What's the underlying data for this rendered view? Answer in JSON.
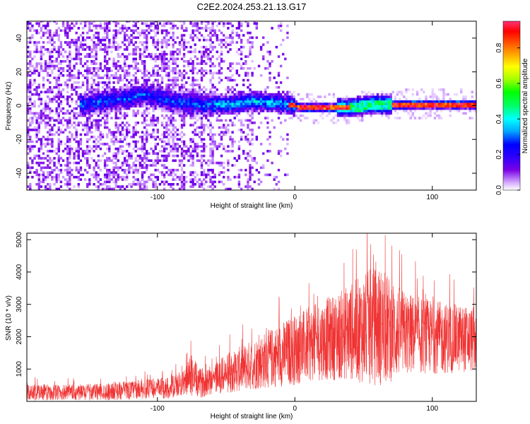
{
  "title": "C2E2.2024.253.21.13.G17",
  "chart_data": [
    {
      "type": "heatmap",
      "xlabel": "Height of straight line (km)",
      "ylabel": "Frequency (Hz)",
      "xlim": [
        -195,
        132
      ],
      "ylim": [
        -50,
        50
      ],
      "xticks": [
        -100,
        0,
        100
      ],
      "yticks": [
        -40,
        -20,
        0,
        20,
        40
      ],
      "colorbar": {
        "label": "Normalized spectral amplitude",
        "range": [
          0,
          0.95
        ],
        "ticks": [
          0,
          0.2,
          0.4,
          0.6,
          0.8
        ],
        "colors": [
          "#ffffff",
          "#cc99ff",
          "#7a00e6",
          "#3300ff",
          "#0000ff",
          "#00aaff",
          "#00ffff",
          "#00ff66",
          "#00ff00",
          "#aaff00",
          "#ffff00",
          "#ffaa00",
          "#ff5500",
          "#ff0000",
          "#ff3377"
        ]
      },
      "center_line": {
        "x": [
          -155,
          -130,
          -110,
          -90,
          -70,
          -50,
          -30,
          -15,
          -5,
          5,
          20,
          40,
          55,
          70,
          90,
          110,
          132
        ],
        "y": [
          0,
          3,
          6,
          2,
          0,
          0,
          2,
          1,
          0,
          -2,
          -2,
          -2,
          0,
          0,
          0,
          0,
          0
        ]
      }
    },
    {
      "type": "line",
      "series_color": "#f03333",
      "xlabel": "Height of straight line (km)",
      "ylabel": "SNR (10 * v/v)",
      "xlim": [
        -195,
        132
      ],
      "ylim": [
        0,
        5200
      ],
      "xticks": [
        -100,
        0,
        100
      ],
      "yticks": [
        1000,
        2000,
        3000,
        4000,
        5000
      ],
      "envelope_x": [
        -195,
        -160,
        -130,
        -110,
        -90,
        -80,
        -75,
        -70,
        -60,
        -50,
        -40,
        -30,
        -20,
        -10,
        0,
        10,
        20,
        30,
        40,
        50,
        55,
        60,
        65,
        70,
        80,
        90,
        100,
        110,
        120,
        132
      ],
      "envelope_mean": [
        280,
        270,
        320,
        380,
        420,
        600,
        850,
        550,
        700,
        850,
        1000,
        1150,
        1300,
        1450,
        1600,
        1750,
        1900,
        2000,
        2150,
        2250,
        2300,
        2350,
        2250,
        2200,
        2100,
        2050,
        2000,
        1950,
        1950,
        1900
      ],
      "envelope_amp": [
        250,
        250,
        280,
        300,
        350,
        400,
        700,
        450,
        500,
        600,
        700,
        800,
        900,
        1000,
        1100,
        1150,
        1250,
        1350,
        1500,
        1700,
        1800,
        1900,
        1800,
        1600,
        1300,
        1200,
        1150,
        1100,
        1050,
        1000
      ]
    }
  ]
}
